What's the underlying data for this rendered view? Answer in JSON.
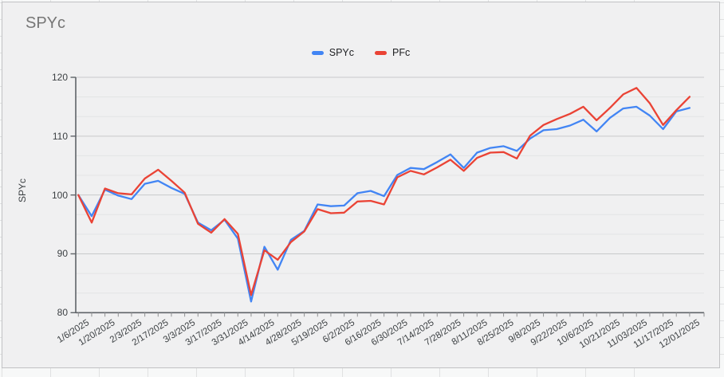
{
  "chart": {
    "title": "SPYc"
  },
  "chart_data": {
    "type": "line",
    "title": "SPYc",
    "xlabel": "",
    "ylabel": "SPYc",
    "ylim": [
      80,
      120
    ],
    "y_ticks": [
      80,
      90,
      100,
      110,
      120
    ],
    "minor_gridlines_between_majors": 2,
    "grid": true,
    "legend_position": "top",
    "label_every_n_points": 2,
    "x_tick_labels": [
      "1/6/2025",
      "1/20/2025",
      "2/3/2025",
      "2/17/2025",
      "3/3/2025",
      "3/17/2025",
      "3/31/2025",
      "4/14/2025",
      "4/28/2025",
      "5/19/2025",
      "6/2/2025",
      "6/16/2025",
      "6/30/2025",
      "7/14/2025",
      "7/28/2025",
      "8/11/2025",
      "8/25/2025",
      "9/8/2025",
      "9/22/2025",
      "10/6/2025",
      "10/21/2025",
      "11/03/2025",
      "11/17/2025",
      "12/01/2025"
    ],
    "series": [
      {
        "name": "SPYc",
        "color": "#4285f4",
        "values": [
          100,
          96.4,
          100.9,
          99.9,
          99.3,
          101.9,
          102.4,
          101.2,
          100.2,
          95.3,
          94.0,
          95.8,
          92.6,
          81.9,
          91.2,
          87.3,
          92.4,
          93.9,
          98.4,
          98.1,
          98.2,
          100.3,
          100.7,
          99.8,
          103.4,
          104.6,
          104.4,
          105.6,
          106.9,
          104.6,
          107.2,
          108.0,
          108.3,
          107.5,
          109.6,
          111.0,
          111.2,
          111.8,
          112.8,
          110.8,
          113.1,
          114.7,
          115.0,
          113.5,
          111.2,
          114.2,
          114.8
        ]
      },
      {
        "name": "PFc",
        "color": "#ea4335",
        "values": [
          100,
          95.3,
          101.1,
          100.3,
          100.1,
          102.8,
          104.3,
          102.4,
          100.4,
          95.1,
          93.6,
          95.9,
          93.4,
          83.0,
          90.6,
          89.0,
          92.0,
          93.8,
          97.6,
          96.9,
          97.0,
          98.9,
          99.0,
          98.4,
          103.0,
          104.1,
          103.5,
          104.7,
          106.0,
          104.1,
          106.3,
          107.2,
          107.3,
          106.2,
          110.1,
          111.9,
          112.9,
          113.8,
          115.0,
          112.7,
          114.8,
          117.1,
          118.2,
          115.6,
          111.9,
          114.4,
          116.7
        ]
      }
    ]
  }
}
